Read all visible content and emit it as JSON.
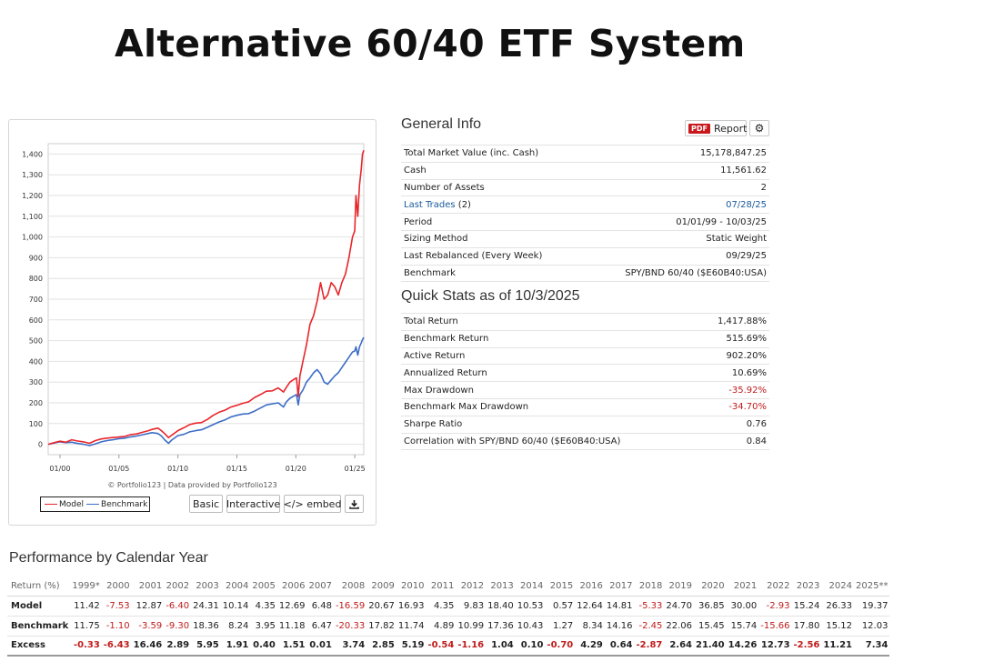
{
  "page_title": "Alternative 60/40 ETF System",
  "chart": {
    "credit": "© Portfolio123 | Data provided by Portfolio123",
    "buttons": {
      "basic": "Basic",
      "interactive": "Interactive",
      "embed": "</> embed",
      "download_icon": "download-icon"
    },
    "colors": {
      "model": "#e8262b",
      "benchmark": "#3c6dc6"
    }
  },
  "chart_data": {
    "type": "line",
    "x_ticks": [
      "01/00",
      "01/05",
      "01/10",
      "01/15",
      "01/20",
      "01/25"
    ],
    "y_ticks": [
      "0",
      "100",
      "200",
      "300",
      "400",
      "500",
      "600",
      "700",
      "800",
      "900",
      "1,000",
      "1,100",
      "1,200",
      "1,300",
      "1,400"
    ],
    "ylim": [
      -50,
      1450
    ],
    "xlim": [
      1999.0,
      2025.76
    ],
    "grid": "horizontal",
    "legend": "bottom-left",
    "series": [
      {
        "name": "Model",
        "x": [
          1999.0,
          1999.5,
          2000.0,
          2000.5,
          2001.0,
          2001.5,
          2002.0,
          2002.5,
          2003.0,
          2003.5,
          2004.0,
          2004.5,
          2005.0,
          2005.5,
          2006.0,
          2006.5,
          2007.0,
          2007.5,
          2007.8,
          2008.3,
          2008.6,
          2008.9,
          2009.2,
          2009.5,
          2010.0,
          2010.5,
          2011.0,
          2011.5,
          2012.0,
          2012.5,
          2013.0,
          2013.5,
          2014.0,
          2014.5,
          2015.0,
          2015.5,
          2016.0,
          2016.5,
          2017.0,
          2017.5,
          2018.0,
          2018.5,
          2018.95,
          2019.2,
          2019.5,
          2019.8,
          2020.05,
          2020.2,
          2020.35,
          2020.6,
          2020.9,
          2021.2,
          2021.5,
          2021.8,
          2022.1,
          2022.4,
          2022.7,
          2023.0,
          2023.3,
          2023.6,
          2023.9,
          2024.2,
          2024.5,
          2024.8,
          2025.0,
          2025.1,
          2025.25,
          2025.4,
          2025.55,
          2025.65,
          2025.76
        ],
        "y": [
          0,
          8,
          15,
          10,
          22,
          16,
          12,
          5,
          18,
          26,
          30,
          33,
          35,
          38,
          47,
          50,
          58,
          66,
          72,
          78,
          66,
          50,
          32,
          45,
          66,
          80,
          95,
          102,
          105,
          120,
          140,
          155,
          165,
          180,
          188,
          198,
          205,
          226,
          240,
          256,
          258,
          272,
          252,
          275,
          300,
          312,
          320,
          230,
          330,
          400,
          480,
          580,
          620,
          690,
          780,
          700,
          720,
          780,
          760,
          720,
          780,
          820,
          900,
          1000,
          1030,
          1200,
          1100,
          1250,
          1330,
          1400,
          1418
        ]
      },
      {
        "name": "Benchmark",
        "x": [
          1999.0,
          1999.5,
          2000.0,
          2000.5,
          2001.0,
          2001.5,
          2002.0,
          2002.5,
          2003.0,
          2003.5,
          2004.0,
          2004.5,
          2005.0,
          2005.5,
          2006.0,
          2006.5,
          2007.0,
          2007.5,
          2007.8,
          2008.3,
          2008.6,
          2008.9,
          2009.2,
          2009.5,
          2010.0,
          2010.5,
          2011.0,
          2011.5,
          2012.0,
          2012.5,
          2013.0,
          2013.5,
          2014.0,
          2014.5,
          2015.0,
          2015.5,
          2016.0,
          2016.5,
          2017.0,
          2017.5,
          2018.0,
          2018.5,
          2018.95,
          2019.2,
          2019.5,
          2019.8,
          2020.05,
          2020.2,
          2020.35,
          2020.6,
          2020.9,
          2021.2,
          2021.5,
          2021.8,
          2022.1,
          2022.4,
          2022.7,
          2023.0,
          2023.3,
          2023.6,
          2023.9,
          2024.2,
          2024.5,
          2024.8,
          2025.0,
          2025.1,
          2025.25,
          2025.4,
          2025.55,
          2025.65,
          2025.76
        ],
        "y": [
          0,
          6,
          12,
          8,
          10,
          4,
          0,
          -6,
          2,
          12,
          18,
          22,
          27,
          30,
          36,
          40,
          46,
          52,
          56,
          52,
          40,
          20,
          5,
          22,
          42,
          48,
          60,
          66,
          70,
          82,
          95,
          108,
          118,
          132,
          140,
          146,
          148,
          160,
          175,
          190,
          195,
          200,
          180,
          205,
          222,
          232,
          240,
          190,
          240,
          262,
          300,
          320,
          345,
          360,
          340,
          300,
          290,
          310,
          330,
          345,
          370,
          395,
          420,
          445,
          450,
          470,
          430,
          470,
          490,
          505,
          516
        ]
      }
    ]
  },
  "general_info": {
    "title": "General Info",
    "report_button": {
      "badge": "PDF",
      "label": "Report",
      "gear_icon": "gear-icon"
    },
    "rows": [
      {
        "label": "Total Market Value (inc. Cash)",
        "value": "15,178,847.25"
      },
      {
        "label": "Cash",
        "value": "11,561.62"
      },
      {
        "label": "Number of Assets",
        "value": "2"
      },
      {
        "label": "Last Trades",
        "label_suffix": "(2)",
        "value": "07/28/25"
      },
      {
        "label": "Period",
        "value": "01/01/99 - 10/03/25"
      },
      {
        "label": "Sizing Method",
        "value": "Static Weight"
      },
      {
        "label": "Last Rebalanced (Every Week)",
        "value": "09/29/25"
      },
      {
        "label": "Benchmark",
        "value": "SPY/BND 60/40 ($E60B40:USA)"
      }
    ]
  },
  "quick_stats": {
    "title": "Quick Stats as of 10/3/2025",
    "rows": [
      {
        "label": "Total Return",
        "value": "1,417.88%"
      },
      {
        "label": "Benchmark Return",
        "value": "515.69%"
      },
      {
        "label": "Active Return",
        "value": "902.20%"
      },
      {
        "label": "Annualized Return",
        "value": "10.69%"
      },
      {
        "label": "Max Drawdown",
        "value": "-35.92%"
      },
      {
        "label": "Benchmark Max Drawdown",
        "value": "-34.70%"
      },
      {
        "label": "Sharpe Ratio",
        "value": "0.76"
      },
      {
        "label": "Correlation with SPY/BND 60/40 ($E60B40:USA)",
        "value": "0.84"
      }
    ]
  },
  "performance": {
    "title": "Performance by Calendar Year",
    "header_label": "Return (%)",
    "years": [
      "1999*",
      "2000",
      "2001",
      "2002",
      "2003",
      "2004",
      "2005",
      "2006",
      "2007",
      "2008",
      "2009",
      "2010",
      "2011",
      "2012",
      "2013",
      "2014",
      "2015",
      "2016",
      "2017",
      "2018",
      "2019",
      "2020",
      "2021",
      "2022",
      "2023",
      "2024",
      "2025**"
    ],
    "rows": [
      {
        "label": "Model",
        "values": [
          "11.42",
          "-7.53",
          "12.87",
          "-6.40",
          "24.31",
          "10.14",
          "4.35",
          "12.69",
          "6.48",
          "-16.59",
          "20.67",
          "16.93",
          "4.35",
          "9.83",
          "18.40",
          "10.53",
          "0.57",
          "12.64",
          "14.81",
          "-5.33",
          "24.70",
          "36.85",
          "30.00",
          "-2.93",
          "15.24",
          "26.33",
          "19.37"
        ]
      },
      {
        "label": "Benchmark",
        "values": [
          "11.75",
          "-1.10",
          "-3.59",
          "-9.30",
          "18.36",
          "8.24",
          "3.95",
          "11.18",
          "6.47",
          "-20.33",
          "17.82",
          "11.74",
          "4.89",
          "10.99",
          "17.36",
          "10.43",
          "1.27",
          "8.34",
          "14.16",
          "-2.45",
          "22.06",
          "15.45",
          "15.74",
          "-15.66",
          "17.80",
          "15.12",
          "12.03"
        ]
      },
      {
        "label": "Excess",
        "values": [
          "-0.33",
          "-6.43",
          "16.46",
          "2.89",
          "5.95",
          "1.91",
          "0.40",
          "1.51",
          "0.01",
          "3.74",
          "2.85",
          "5.19",
          "-0.54",
          "-1.16",
          "1.04",
          "0.10",
          "-0.70",
          "4.29",
          "0.64",
          "-2.87",
          "2.64",
          "21.40",
          "14.26",
          "12.73",
          "-2.56",
          "11.21",
          "7.34"
        ]
      }
    ]
  }
}
